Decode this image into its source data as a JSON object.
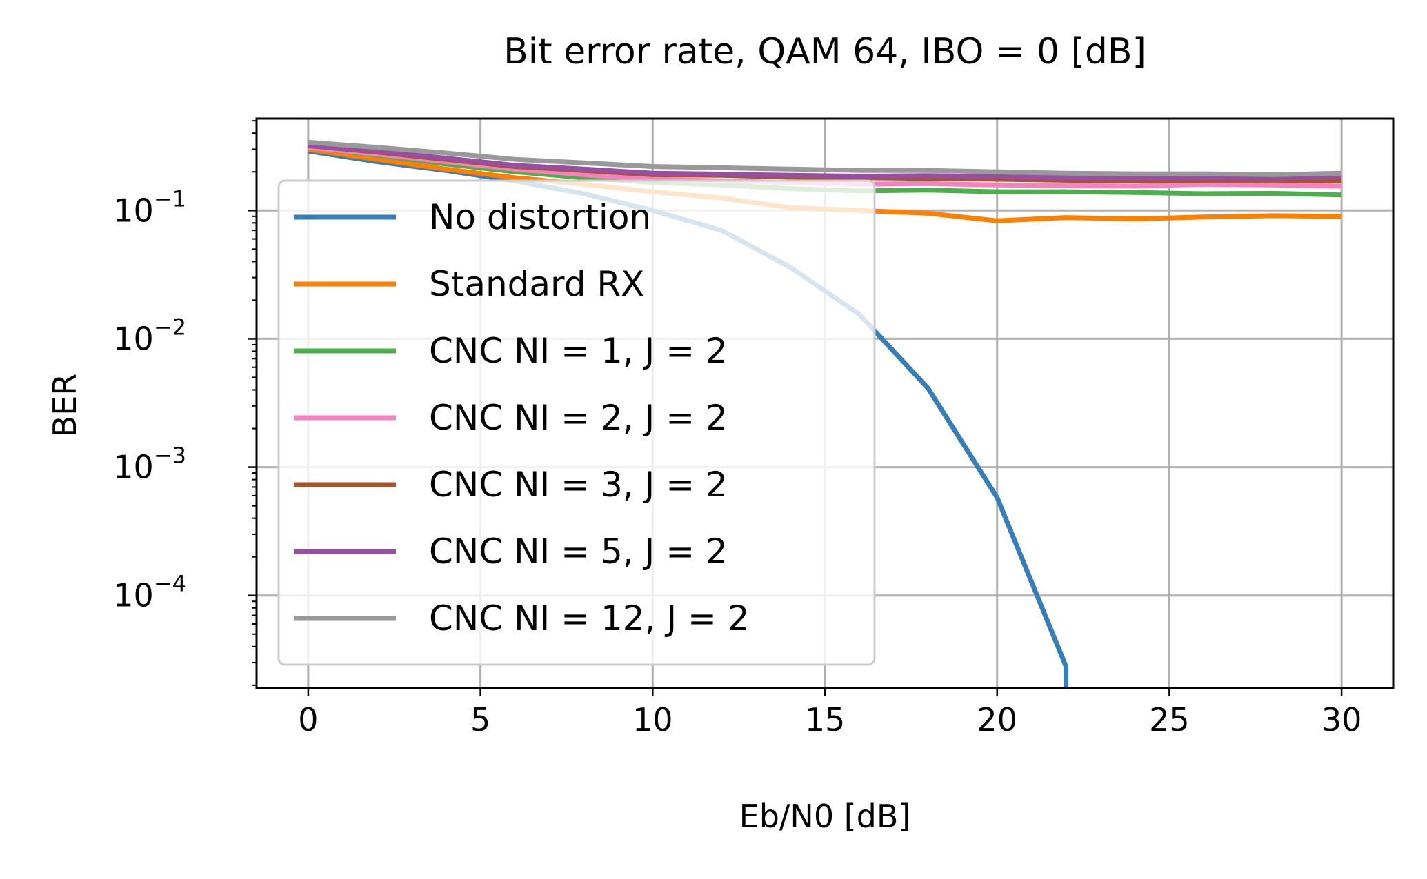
{
  "chart_data": {
    "type": "line",
    "title": "Bit error rate, QAM 64, IBO = 0 [dB]",
    "xlabel": "Eb/N0 [dB]",
    "ylabel": "BER",
    "yscale": "log",
    "xlim": [
      -1.5,
      31.5
    ],
    "ylim": [
      1.9e-05,
      0.52
    ],
    "grid": true,
    "legend_position": "upper-left",
    "xticks": [
      0,
      5,
      10,
      15,
      20,
      25,
      30
    ],
    "yticks": [
      {
        "exp": -4,
        "base": "10",
        "sup": "−4"
      },
      {
        "exp": -3,
        "base": "10",
        "sup": "−3"
      },
      {
        "exp": -2,
        "base": "10",
        "sup": "−2"
      },
      {
        "exp": -1,
        "base": "10",
        "sup": "−1"
      }
    ],
    "x": [
      0,
      2,
      4,
      6,
      8,
      10,
      12,
      14,
      16,
      18,
      20,
      22,
      24,
      26,
      28,
      30
    ],
    "series": [
      {
        "name": "No distortion",
        "color": "#377eb8",
        "values": [
          0.29,
          0.24,
          0.205,
          0.17,
          0.135,
          0.1,
          0.07,
          0.036,
          0.0155,
          0.0041,
          0.00058,
          2.8e-05,
          null,
          null,
          null,
          null
        ],
        "drop_to_axis": true
      },
      {
        "name": "Standard RX",
        "color": "#ff7f00",
        "values": [
          0.3,
          0.25,
          0.21,
          0.18,
          0.16,
          0.14,
          0.125,
          0.105,
          0.1,
          0.095,
          0.083,
          0.088,
          0.086,
          0.089,
          0.091,
          0.09
        ]
      },
      {
        "name": "CNC NI = 1, J = 2",
        "color": "#4daf4a",
        "values": [
          0.31,
          0.27,
          0.23,
          0.2,
          0.18,
          0.165,
          0.158,
          0.148,
          0.142,
          0.144,
          0.14,
          0.14,
          0.138,
          0.135,
          0.136,
          0.132
        ]
      },
      {
        "name": "CNC NI = 2, J = 2",
        "color": "#f781bf",
        "values": [
          0.31,
          0.275,
          0.24,
          0.21,
          0.19,
          0.175,
          0.17,
          0.165,
          0.16,
          0.162,
          0.158,
          0.156,
          0.155,
          0.16,
          0.158,
          0.155
        ]
      },
      {
        "name": "CNC NI = 3, J = 2",
        "color": "#a65628",
        "values": [
          0.32,
          0.285,
          0.25,
          0.22,
          0.205,
          0.19,
          0.188,
          0.182,
          0.18,
          0.178,
          0.175,
          0.172,
          0.17,
          0.172,
          0.172,
          0.17
        ]
      },
      {
        "name": "CNC NI = 5, J = 2",
        "color": "#984ea3",
        "values": [
          0.32,
          0.29,
          0.255,
          0.225,
          0.21,
          0.195,
          0.192,
          0.188,
          0.185,
          0.187,
          0.183,
          0.18,
          0.178,
          0.18,
          0.18,
          0.183
        ]
      },
      {
        "name": "CNC NI = 12, J = 2",
        "color": "#999999",
        "values": [
          0.34,
          0.31,
          0.28,
          0.25,
          0.235,
          0.22,
          0.215,
          0.21,
          0.205,
          0.205,
          0.2,
          0.195,
          0.193,
          0.193,
          0.19,
          0.195
        ]
      }
    ]
  }
}
